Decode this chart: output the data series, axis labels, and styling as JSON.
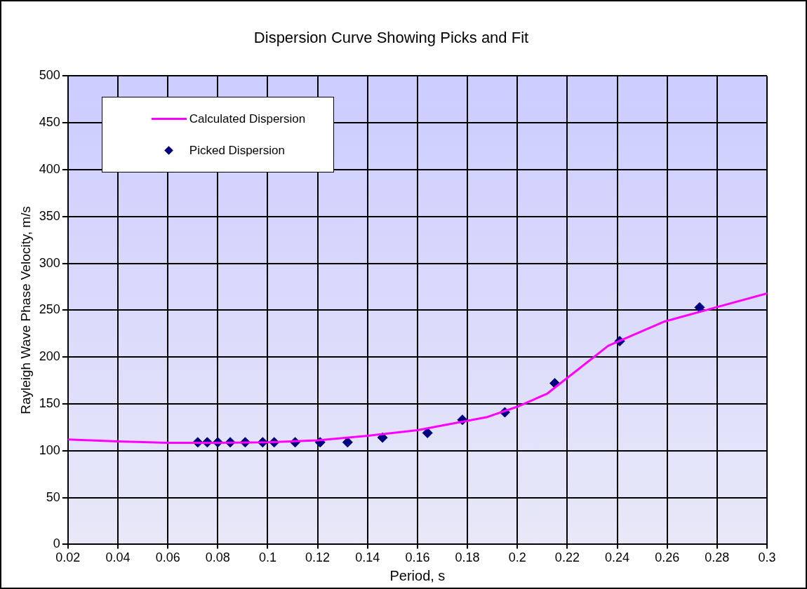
{
  "chart_data": {
    "type": "scatter",
    "title": "Dispersion Curve Showing Picks and Fit",
    "xlabel": "Period, s",
    "ylabel": "Rayleigh Wave Phase Velocity, m/s",
    "xlim": [
      0.02,
      0.3
    ],
    "xticks": [
      0.02,
      0.04,
      0.06,
      0.08,
      0.1,
      0.12,
      0.14,
      0.16,
      0.18,
      0.2,
      0.22,
      0.24,
      0.26,
      0.28,
      0.3
    ],
    "ylim": [
      0,
      500
    ],
    "yticks": [
      0,
      50,
      100,
      150,
      200,
      250,
      300,
      350,
      400,
      450,
      500
    ],
    "grid": true,
    "legend": "top left",
    "series": [
      {
        "name": "Calculated Dispersion",
        "type": "line",
        "color": "#ff00ff",
        "marker": "none",
        "line_style": "solid",
        "x": [
          0.02,
          0.04,
          0.06,
          0.08,
          0.1,
          0.12,
          0.14,
          0.16,
          0.17,
          0.188,
          0.2,
          0.212,
          0.2364,
          0.259,
          0.3
        ],
        "values": [
          112,
          110,
          108.5,
          108.5,
          109,
          111,
          116,
          122,
          127,
          136,
          147,
          161,
          212,
          238,
          268
        ]
      },
      {
        "name": "Picked Dispersion",
        "color": "#000080",
        "marker": "diamond",
        "x": [
          0.072,
          0.0758,
          0.08,
          0.085,
          0.091,
          0.098,
          0.1026,
          0.111,
          0.121,
          0.132,
          0.146,
          0.164,
          0.178,
          0.195,
          0.215,
          0.241,
          0.273
        ],
        "values": [
          109,
          109,
          109,
          109,
          109,
          109,
          109,
          109,
          109,
          109,
          114,
          119,
          133,
          141,
          172,
          217,
          253
        ]
      }
    ]
  }
}
